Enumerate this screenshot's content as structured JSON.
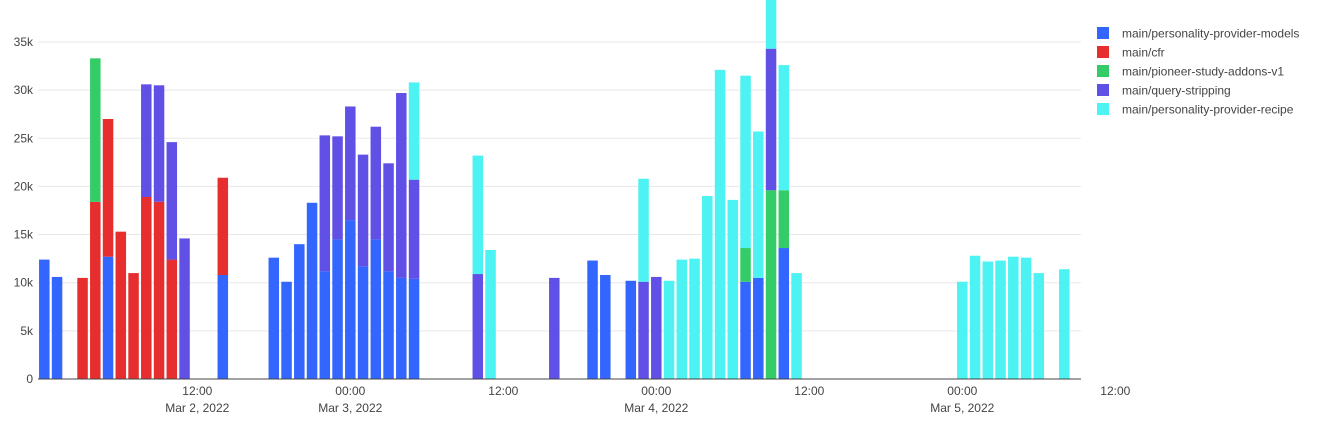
{
  "chart_data": {
    "type": "bar",
    "stacked": true,
    "x_unit": "hours since Mar 2, 2022 00:00",
    "y_ticks": [
      {
        "value": 0,
        "label": "0"
      },
      {
        "value": 5000,
        "label": "5k"
      },
      {
        "value": 10000,
        "label": "10k"
      },
      {
        "value": 15000,
        "label": "15k"
      },
      {
        "value": 20000,
        "label": "20k"
      },
      {
        "value": 25000,
        "label": "25k"
      },
      {
        "value": 30000,
        "label": "30k"
      },
      {
        "value": 35000,
        "label": "35k"
      }
    ],
    "x_ticks": [
      {
        "value": 12,
        "line1": "12:00",
        "line2": "Mar 2, 2022"
      },
      {
        "value": 24,
        "line1": "00:00",
        "line2": "Mar 3, 2022"
      },
      {
        "value": 36,
        "line1": "12:00",
        "line2": ""
      },
      {
        "value": 48,
        "line1": "00:00",
        "line2": "Mar 4, 2022"
      },
      {
        "value": 60,
        "line1": "12:00",
        "line2": ""
      },
      {
        "value": 72,
        "line1": "00:00",
        "line2": "Mar 5, 2022"
      },
      {
        "value": 84,
        "line1": "12:00",
        "line2": ""
      }
    ],
    "series": [
      {
        "name": "main/personality-provider-models",
        "color": "#3366ff",
        "points": [
          [
            0,
            12400
          ],
          [
            1,
            10600
          ],
          [
            5,
            12700
          ],
          [
            14,
            10800
          ],
          [
            18,
            12600
          ],
          [
            19,
            10100
          ],
          [
            20,
            14000
          ],
          [
            21,
            18300
          ],
          [
            22,
            11200
          ],
          [
            23,
            14500
          ],
          [
            24,
            16500
          ],
          [
            25,
            11700
          ],
          [
            26,
            14500
          ],
          [
            27,
            11200
          ],
          [
            28,
            10500
          ],
          [
            29,
            10400
          ],
          [
            43,
            12300
          ],
          [
            44,
            10800
          ],
          [
            46,
            10200
          ],
          [
            55,
            10100
          ],
          [
            56,
            10500
          ],
          [
            58,
            13600
          ]
        ]
      },
      {
        "name": "main/cfr",
        "color": "#e62e2e",
        "points": [
          [
            3,
            10500
          ],
          [
            4,
            18400
          ],
          [
            5,
            14300
          ],
          [
            6,
            15300
          ],
          [
            7,
            11000
          ],
          [
            8,
            18900
          ],
          [
            9,
            18400
          ],
          [
            10,
            12400
          ],
          [
            14,
            10100
          ]
        ]
      },
      {
        "name": "main/pioneer-study-addons-v1",
        "color": "#33cc66",
        "points": [
          [
            4,
            14900
          ],
          [
            55,
            3500
          ],
          [
            57,
            19600
          ],
          [
            58,
            6000
          ]
        ]
      },
      {
        "name": "main/query-stripping",
        "color": "#6050e6",
        "points": [
          [
            8,
            11700
          ],
          [
            9,
            12100
          ],
          [
            10,
            12200
          ],
          [
            11,
            14600
          ],
          [
            22,
            14100
          ],
          [
            23,
            10700
          ],
          [
            24,
            11800
          ],
          [
            25,
            11600
          ],
          [
            26,
            11700
          ],
          [
            27,
            11200
          ],
          [
            28,
            19200
          ],
          [
            29,
            10300
          ],
          [
            34,
            10900
          ],
          [
            40,
            10500
          ],
          [
            47,
            10100
          ],
          [
            48,
            10600
          ],
          [
            57,
            14700
          ]
        ]
      },
      {
        "name": "main/personality-provider-recipe",
        "color": "#4df2f2",
        "points": [
          [
            29,
            10100
          ],
          [
            34,
            12300
          ],
          [
            35,
            13400
          ],
          [
            47,
            10700
          ],
          [
            49,
            10200
          ],
          [
            50,
            12400
          ],
          [
            51,
            12500
          ],
          [
            52,
            19000
          ],
          [
            53,
            32100
          ],
          [
            54,
            18600
          ],
          [
            55,
            17900
          ],
          [
            56,
            15200
          ],
          [
            57,
            15000
          ],
          [
            58,
            13000
          ],
          [
            59,
            11000
          ],
          [
            72,
            10100
          ],
          [
            73,
            12800
          ],
          [
            74,
            12200
          ],
          [
            75,
            12300
          ],
          [
            76,
            12700
          ],
          [
            77,
            12600
          ],
          [
            78,
            11000
          ],
          [
            80,
            11400
          ]
        ]
      }
    ]
  }
}
